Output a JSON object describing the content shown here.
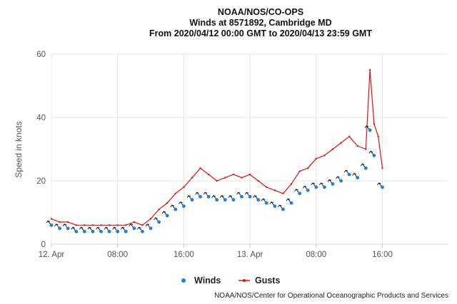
{
  "chart_data": {
    "type": "line",
    "title": "NOAA/NOS/CO-OPS",
    "subtitle_lines": [
      "Winds at 8571892, Cambridge MD",
      "From 2020/04/12 00:00 GMT to 2020/04/13 23:59 GMT"
    ],
    "ylabel": "Speed in knots",
    "xlabel": "",
    "ylim": [
      0,
      60
    ],
    "yticks": [
      0,
      20,
      40,
      60
    ],
    "xlim": [
      "2020-04-12 00:00",
      "2020-04-13 23:59"
    ],
    "xticks": [
      {
        "label": "12. Apr",
        "time": "2020-04-12 00:00"
      },
      {
        "label": "08:00",
        "time": "2020-04-12 08:00"
      },
      {
        "label": "16:00",
        "time": "2020-04-12 16:00"
      },
      {
        "label": "13. Apr",
        "time": "2020-04-13 00:00"
      },
      {
        "label": "08:00",
        "time": "2020-04-13 08:00"
      },
      {
        "label": "16:00",
        "time": "2020-04-13 16:00"
      }
    ],
    "grid": {
      "x": true,
      "y": true
    },
    "legend_position": "bottom-center",
    "series": [
      {
        "name": "Winds",
        "color": "#1e7fe0",
        "style": "points-with-direction-arrows",
        "times": [
          "2020-04-12 00:00",
          "2020-04-12 01:00",
          "2020-04-12 02:00",
          "2020-04-12 03:00",
          "2020-04-12 04:00",
          "2020-04-12 05:00",
          "2020-04-12 06:00",
          "2020-04-12 07:00",
          "2020-04-12 08:00",
          "2020-04-12 09:00",
          "2020-04-12 10:00",
          "2020-04-12 11:00",
          "2020-04-12 12:00",
          "2020-04-12 13:00",
          "2020-04-12 14:00",
          "2020-04-12 15:00",
          "2020-04-12 16:00",
          "2020-04-12 17:00",
          "2020-04-12 18:00",
          "2020-04-12 19:00",
          "2020-04-12 20:00",
          "2020-04-12 21:00",
          "2020-04-12 22:00",
          "2020-04-12 23:00",
          "2020-04-13 00:00",
          "2020-04-13 01:00",
          "2020-04-13 02:00",
          "2020-04-13 03:00",
          "2020-04-13 04:00",
          "2020-04-13 05:00",
          "2020-04-13 06:00",
          "2020-04-13 07:00",
          "2020-04-13 08:00",
          "2020-04-13 09:00",
          "2020-04-13 10:00",
          "2020-04-13 11:00",
          "2020-04-13 12:00",
          "2020-04-13 13:00",
          "2020-04-13 14:00",
          "2020-04-13 14:30",
          "2020-04-13 15:00",
          "2020-04-13 16:00"
        ],
        "values": [
          6,
          5,
          5,
          4,
          4,
          4,
          4,
          4,
          4,
          4,
          5,
          4,
          5,
          7,
          9,
          11,
          12,
          14,
          15,
          15,
          14,
          14,
          14,
          15,
          15,
          14,
          13,
          12,
          11,
          13,
          16,
          17,
          18,
          18,
          19,
          20,
          22,
          21,
          24,
          36,
          28,
          18
        ]
      },
      {
        "name": "Gusts",
        "color": "#e01010",
        "style": "line",
        "times": [
          "2020-04-12 00:00",
          "2020-04-12 01:00",
          "2020-04-12 02:00",
          "2020-04-12 03:00",
          "2020-04-12 04:00",
          "2020-04-12 05:00",
          "2020-04-12 06:00",
          "2020-04-12 07:00",
          "2020-04-12 08:00",
          "2020-04-12 09:00",
          "2020-04-12 10:00",
          "2020-04-12 11:00",
          "2020-04-12 12:00",
          "2020-04-12 13:00",
          "2020-04-12 14:00",
          "2020-04-12 15:00",
          "2020-04-12 16:00",
          "2020-04-12 17:00",
          "2020-04-12 18:00",
          "2020-04-12 19:00",
          "2020-04-12 20:00",
          "2020-04-12 21:00",
          "2020-04-12 22:00",
          "2020-04-12 23:00",
          "2020-04-13 00:00",
          "2020-04-13 01:00",
          "2020-04-13 02:00",
          "2020-04-13 03:00",
          "2020-04-13 04:00",
          "2020-04-13 05:00",
          "2020-04-13 06:00",
          "2020-04-13 07:00",
          "2020-04-13 08:00",
          "2020-04-13 09:00",
          "2020-04-13 10:00",
          "2020-04-13 11:00",
          "2020-04-13 12:00",
          "2020-04-13 13:00",
          "2020-04-13 14:00",
          "2020-04-13 14:30",
          "2020-04-13 15:00",
          "2020-04-13 15:30",
          "2020-04-13 16:00"
        ],
        "values": [
          8,
          7,
          7,
          6,
          6,
          6,
          6,
          6,
          6,
          6,
          7,
          6,
          8,
          11,
          13,
          16,
          18,
          21,
          24,
          22,
          20,
          21,
          22,
          21,
          22,
          20,
          18,
          17,
          16,
          19,
          23,
          24,
          27,
          28,
          30,
          32,
          34,
          31,
          30,
          55,
          38,
          34,
          24
        ]
      }
    ]
  },
  "legend": {
    "items": [
      "Winds",
      "Gusts"
    ]
  },
  "credit": "NOAA/NOS/Center for Operational Oceanographic Products and Services",
  "colors": {
    "winds": "#1e7fe0",
    "gusts": "#e01010",
    "grid": "#e4e4e4"
  }
}
